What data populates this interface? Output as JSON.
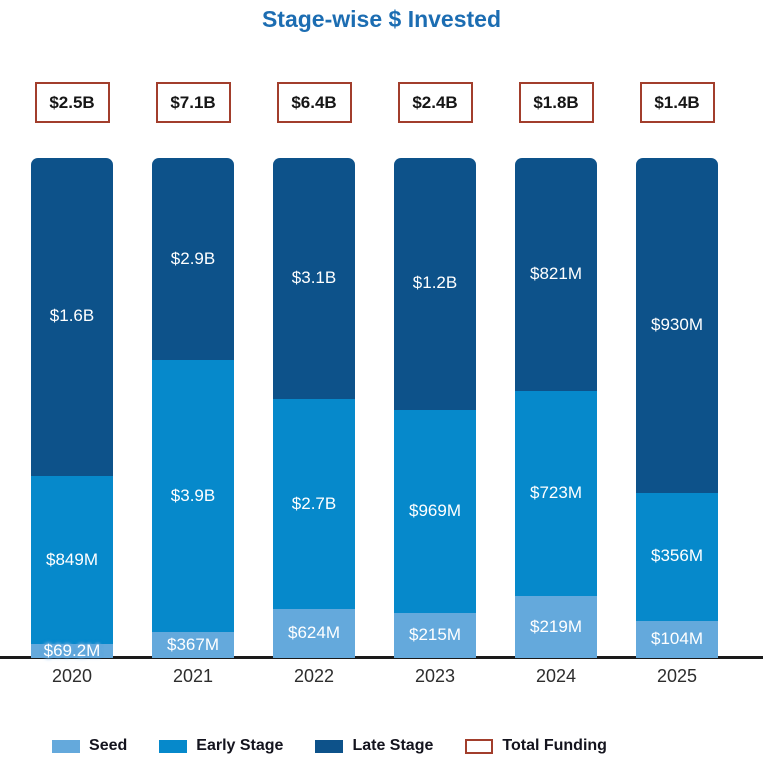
{
  "title": "Stage-wise $ Invested",
  "chart_data": {
    "type": "bar",
    "subtype": "stacked-normalized-equal-height",
    "title": "Stage-wise $ Invested",
    "xlabel": "",
    "ylabel": "",
    "grid": false,
    "legend_position": "bottom",
    "categories": [
      "2020",
      "2021",
      "2022",
      "2023",
      "2024",
      "2025"
    ],
    "series": [
      {
        "name": "Seed",
        "color": "#64A9DC",
        "values_million_usd": [
          69.2,
          367,
          624,
          215,
          219,
          104
        ],
        "labels": [
          "$69.2M",
          "$367M",
          "$624M",
          "$215M",
          "$219M",
          "$104M"
        ]
      },
      {
        "name": "Early Stage",
        "color": "#0689CB",
        "values_million_usd": [
          849,
          3900,
          2700,
          969,
          723,
          356
        ],
        "labels": [
          "$849M",
          "$3.9B",
          "$2.7B",
          "$969M",
          "$723M",
          "$356M"
        ]
      },
      {
        "name": "Late Stage",
        "color": "#0D528A",
        "values_million_usd": [
          1600,
          2900,
          3100,
          1200,
          821,
          930
        ],
        "labels": [
          "$1.6B",
          "$2.9B",
          "$3.1B",
          "$1.2B",
          "$821M",
          "$930M"
        ]
      }
    ],
    "totals": {
      "name": "Total Funding",
      "labels": [
        "$2.5B",
        "$7.1B",
        "$6.4B",
        "$2.4B",
        "$1.8B",
        "$1.4B"
      ],
      "border_color": "#A23E2C"
    },
    "legend": [
      {
        "label": "Seed",
        "swatch": "#64A9DC",
        "type": "fill"
      },
      {
        "label": "Early Stage",
        "swatch": "#0689CB",
        "type": "fill"
      },
      {
        "label": "Late Stage",
        "swatch": "#0D528A",
        "type": "fill"
      },
      {
        "label": "Total Funding",
        "swatch": "#A23E2C",
        "type": "outline"
      }
    ]
  },
  "colors": {
    "title": "#1C6DB2",
    "seed": "#64A9DC",
    "early_stage": "#0689CB",
    "late_stage": "#0D528A",
    "total_box_border": "#A23E2C",
    "axis_line": "#1A1A1A",
    "bar_value_text": "#FFFFFF",
    "year_text": "#2D2D2D"
  }
}
